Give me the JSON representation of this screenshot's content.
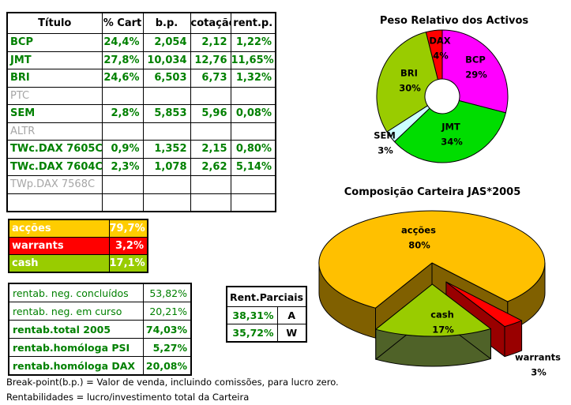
{
  "main_table": {
    "columns": [
      "Título",
      "% Cart",
      "b.p.",
      "cotação",
      "rent.p."
    ],
    "rows": [
      {
        "name": "BCP",
        "active": true,
        "cells": [
          "24,4%",
          "2,054",
          "2,12",
          "1,22%"
        ]
      },
      {
        "name": "JMT",
        "active": true,
        "cells": [
          "27,8%",
          "10,034",
          "12,76",
          "11,65%"
        ]
      },
      {
        "name": "BRI",
        "active": true,
        "cells": [
          "24,6%",
          "6,503",
          "6,73",
          "1,32%"
        ]
      },
      {
        "name": "PTC",
        "active": false,
        "cells": [
          "",
          "",
          "",
          ""
        ]
      },
      {
        "name": "SEM",
        "active": true,
        "cells": [
          "2,8%",
          "5,853",
          "5,96",
          "0,08%"
        ]
      },
      {
        "name": "ALTR",
        "active": false,
        "cells": [
          "",
          "",
          "",
          ""
        ]
      },
      {
        "name": "TWc.DAX 7605C",
        "active": true,
        "cells": [
          "0,9%",
          "1,352",
          "2,15",
          "0,80%"
        ]
      },
      {
        "name": "TWc.DAX 7604C",
        "active": true,
        "cells": [
          "2,3%",
          "1,078",
          "2,62",
          "5,14%"
        ]
      },
      {
        "name": "TWp.DAX 7568C",
        "active": false,
        "cells": [
          "",
          "",
          "",
          ""
        ]
      },
      {
        "name": "",
        "active": false,
        "cells": [
          "",
          "",
          "",
          ""
        ]
      }
    ]
  },
  "allocation_table": {
    "rows": [
      {
        "label": "acções",
        "value": "79,7%",
        "color": "#FFCC00"
      },
      {
        "label": "warrants",
        "value": "3,2%",
        "color": "#FF0000"
      },
      {
        "label": "cash",
        "value": "17,1%",
        "color": "#99CC00"
      }
    ],
    "text_color": "#FFFFFF"
  },
  "returns_table": {
    "rows": [
      {
        "label": "rentab. neg. concluídos",
        "value": "53,82%",
        "bold": false
      },
      {
        "label": "rentab. neg. em curso",
        "value": "20,21%",
        "bold": false
      },
      {
        "label": "rentab.total 2005",
        "value": "74,03%",
        "bold": true
      },
      {
        "label": "rentab.homóloga PSI",
        "value": "5,27%",
        "bold": true
      },
      {
        "label": "rentab.homóloga DAX",
        "value": "20,08%",
        "bold": true
      }
    ]
  },
  "partials_table": {
    "header": "Rent.Parciais",
    "rows": [
      {
        "value": "38,31%",
        "tag": "A"
      },
      {
        "value": "35,72%",
        "tag": "W"
      }
    ]
  },
  "footnotes": [
    "Break-point(b.p.) = Valor de venda, incluindo comissões, para lucro zero.",
    "Rentabilidades = lucro/investimento total da Carteira"
  ],
  "colors": {
    "text_green": "#008000",
    "inactive_gray": "#A6A6A6"
  },
  "chart_data": [
    {
      "type": "pie",
      "subtype": "donut",
      "title": "Peso Relativo dos Activos",
      "labels": [
        "BCP",
        "JMT",
        "SEM",
        "BRI",
        "DAX"
      ],
      "values": [
        29,
        34,
        3,
        30,
        4
      ],
      "unit": "%",
      "colors": [
        "#FF00FF",
        "#00DD00",
        "#CCFFFF",
        "#99CC00",
        "#FF0000"
      ],
      "start_angle_deg": 0,
      "direction": "clockwise",
      "hole": true,
      "legend": false,
      "labels_on_slices": true
    },
    {
      "type": "pie",
      "subtype": "3d-exploded",
      "title": "Composição Carteira JAS*2005",
      "labels": [
        "acções",
        "warrants",
        "cash"
      ],
      "values": [
        80,
        3,
        17
      ],
      "unit": "%",
      "colors": [
        "#FFC000",
        "#FF0000",
        "#99CC00"
      ],
      "side_colors": [
        "#806000",
        "#990000",
        "#4F6228"
      ],
      "start_angle_deg": 210,
      "direction": "clockwise",
      "legend": false,
      "labels_on_slices": true
    }
  ]
}
